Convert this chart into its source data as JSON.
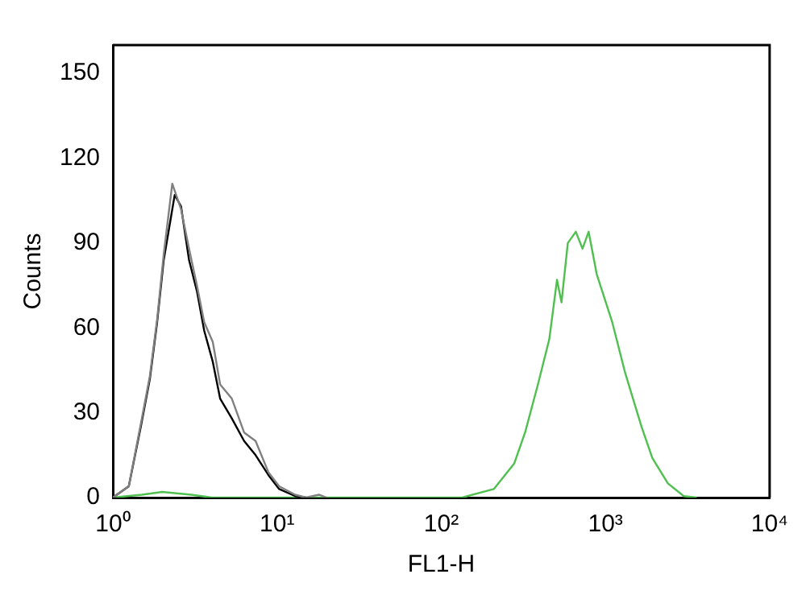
{
  "chart_data": {
    "type": "line",
    "xlabel": "FL1-H",
    "ylabel": "Counts",
    "log": "x",
    "grid": false,
    "legend": false,
    "marker": "none",
    "line_style": "solid",
    "xlim": [
      1,
      10000
    ],
    "xticks": [
      {
        "value": 1,
        "label": "10⁰"
      },
      {
        "value": 10,
        "label": "10¹"
      },
      {
        "value": 100,
        "label": "10²"
      },
      {
        "value": 1000,
        "label": "10³"
      },
      {
        "value": 10000,
        "label": "10⁴"
      }
    ],
    "ylim": [
      0,
      160
    ],
    "yticks": [
      0,
      30,
      60,
      90,
      120,
      150
    ],
    "series": [
      {
        "color": "#808080",
        "x": [
          1,
          1.25,
          1.49,
          1.68,
          1.86,
          2.04,
          2.3,
          2.6,
          2.91,
          3.25,
          3.6,
          4.06,
          4.5,
          5.3,
          6.3,
          7.4,
          8.85,
          10.3,
          12.9,
          15,
          18,
          20
        ],
        "values": [
          0,
          4,
          27,
          43,
          63,
          86,
          111,
          102,
          88,
          75,
          62,
          55,
          40,
          35,
          23,
          20,
          9,
          4,
          1,
          0,
          1,
          0
        ]
      },
      {
        "color": "#000000",
        "x": [
          1,
          1.25,
          1.49,
          1.68,
          1.86,
          2.04,
          2.38,
          2.6,
          2.91,
          3.25,
          3.6,
          4.06,
          4.5,
          5.3,
          6.3,
          7.4,
          8.85,
          10.3,
          12.9,
          15
        ],
        "values": [
          0,
          4,
          26,
          42,
          62,
          84,
          107,
          103,
          84,
          73,
          59,
          48,
          35,
          28,
          20,
          15,
          8,
          3,
          0.5,
          0
        ]
      },
      {
        "color": "#4fc04f",
        "x": [
          1,
          1.5,
          2,
          3,
          4,
          134,
          209,
          278,
          324,
          388,
          455,
          507,
          540,
          590,
          660,
          725,
          790,
          885,
          1100,
          1320,
          1660,
          1930,
          2400,
          3000,
          3600
        ],
        "values": [
          0,
          1,
          2,
          1,
          0,
          0,
          3,
          12,
          23,
          40,
          56,
          77,
          69,
          90,
          94,
          88,
          94,
          79,
          62,
          44,
          25,
          14,
          5,
          0.5,
          0
        ]
      }
    ]
  }
}
